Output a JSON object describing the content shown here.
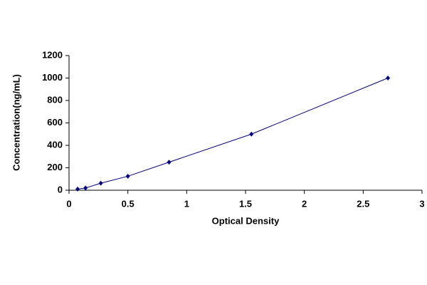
{
  "chart_data": {
    "type": "scatter",
    "x_label": "Optical Density",
    "y_label": "Concentration(ng/mL)",
    "series": [
      {
        "color": "#000080",
        "x": [
          0.073,
          0.14,
          0.27,
          0.5,
          0.85,
          1.55,
          2.71
        ],
        "values": [
          10,
          20,
          62.5,
          125,
          250,
          500,
          1000
        ]
      }
    ],
    "xlim": [
      0,
      3
    ],
    "xticks": [
      0,
      0.5,
      1,
      1.5,
      2,
      2.5,
      3
    ],
    "ylim": [
      0,
      1200
    ],
    "yticks": [
      0,
      200,
      400,
      600,
      800,
      1000,
      1200
    ],
    "grid": false,
    "line": true
  }
}
